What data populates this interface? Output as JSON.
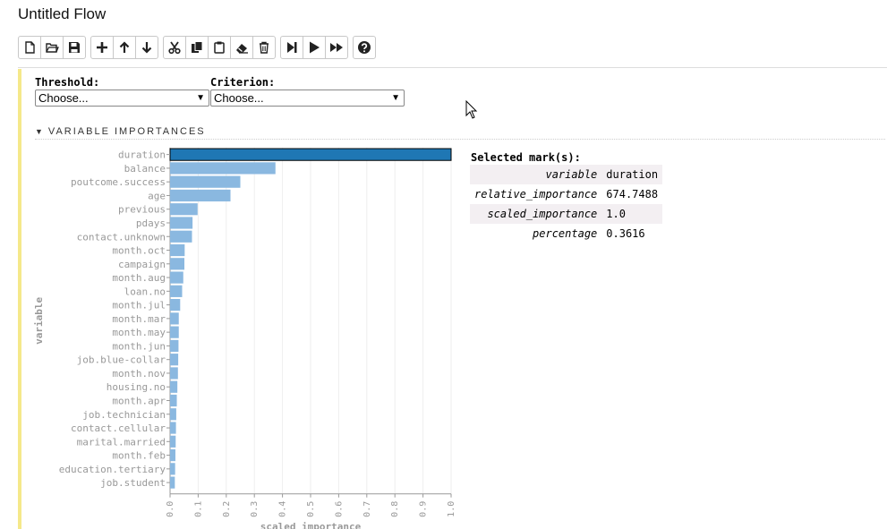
{
  "flow_title": "Untitled Flow",
  "toolbar": {
    "groups": [
      [
        "new-file-icon",
        "open-folder-icon",
        "save-icon"
      ],
      [
        "plus-icon",
        "arrow-up-icon",
        "arrow-down-icon"
      ],
      [
        "cut-icon",
        "copy-icon",
        "paste-icon",
        "eraser-icon",
        "trash-icon"
      ],
      [
        "step-forward-icon",
        "play-icon",
        "fast-forward-icon"
      ],
      [
        "help-icon"
      ]
    ]
  },
  "form": {
    "threshold_label": "Threshold:",
    "threshold_value": "Choose...",
    "criterion_label": "Criterion:",
    "criterion_value": "Choose..."
  },
  "section_title": "VARIABLE IMPORTANCES",
  "selected": {
    "header": "Selected mark(s):",
    "rows": [
      {
        "key": "variable",
        "value": "duration"
      },
      {
        "key": "relative_importance",
        "value": "674.7488"
      },
      {
        "key": "scaled_importance",
        "value": "1.0"
      },
      {
        "key": "percentage",
        "value": "0.3616"
      }
    ]
  },
  "chart_data": {
    "type": "bar",
    "orientation": "horizontal",
    "xlabel": "scaled_importance",
    "ylabel": "variable",
    "xlim": [
      0,
      1.0
    ],
    "xticks": [
      "0.0",
      "0.1",
      "0.2",
      "0.3",
      "0.4",
      "0.5",
      "0.6",
      "0.7",
      "0.8",
      "0.9",
      "1.0"
    ],
    "grid": true,
    "selected_category": "duration",
    "colors": {
      "bar": "#8ab8e0",
      "selected": "#1f77b4",
      "axis": "#999999",
      "grid": "#eeeeee"
    },
    "categories": [
      "duration",
      "balance",
      "poutcome.success",
      "age",
      "previous",
      "pdays",
      "contact.unknown",
      "month.oct",
      "campaign",
      "month.aug",
      "loan.no",
      "month.jul",
      "month.mar",
      "month.may",
      "month.jun",
      "job.blue-collar",
      "month.nov",
      "housing.no",
      "month.apr",
      "job.technician",
      "contact.cellular",
      "marital.married",
      "month.feb",
      "education.tertiary",
      "job.student"
    ],
    "values": [
      1.0,
      0.375,
      0.25,
      0.215,
      0.098,
      0.08,
      0.078,
      0.052,
      0.051,
      0.047,
      0.043,
      0.036,
      0.031,
      0.031,
      0.03,
      0.029,
      0.028,
      0.026,
      0.024,
      0.022,
      0.021,
      0.02,
      0.019,
      0.018,
      0.017
    ]
  }
}
